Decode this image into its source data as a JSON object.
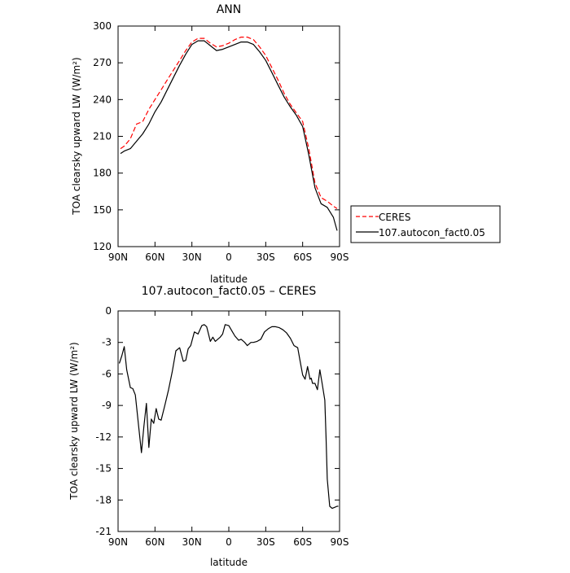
{
  "chart_data": [
    {
      "type": "line",
      "title": "ANN",
      "xlabel": "latitude",
      "ylabel": "TOA clearsky upward LW (W/m²)",
      "x_ticks": [
        "90N",
        "60N",
        "30N",
        "0",
        "30S",
        "60S",
        "90S"
      ],
      "x_tick_values": [
        90,
        60,
        30,
        0,
        -30,
        -60,
        -90
      ],
      "y_ticks": [
        "120",
        "150",
        "180",
        "210",
        "240",
        "270",
        "300"
      ],
      "ylim": [
        120,
        300
      ],
      "xlim": [
        90,
        -90
      ],
      "grid": false,
      "legend": "outside right",
      "series": [
        {
          "name": "CERES",
          "style": "dashed",
          "color": "#ff0000",
          "x": [
            88,
            85,
            80,
            75,
            70,
            65,
            60,
            55,
            50,
            45,
            40,
            35,
            30,
            25,
            20,
            15,
            10,
            5,
            0,
            -5,
            -10,
            -15,
            -20,
            -25,
            -30,
            -35,
            -40,
            -45,
            -50,
            -55,
            -60,
            -65,
            -70,
            -75,
            -80,
            -85,
            -88
          ],
          "values": [
            200,
            202,
            208,
            220,
            222,
            232,
            240,
            248,
            256,
            264,
            272,
            280,
            287,
            290,
            290,
            286,
            283,
            284,
            286,
            289,
            291,
            291,
            289,
            283,
            276,
            266,
            256,
            245,
            236,
            229,
            222,
            200,
            172,
            160,
            157,
            153,
            151
          ]
        },
        {
          "name": "107.autocon_fact0.05",
          "style": "solid",
          "color": "#000000",
          "x": [
            88,
            85,
            80,
            75,
            70,
            65,
            60,
            55,
            50,
            45,
            40,
            35,
            30,
            25,
            20,
            15,
            10,
            5,
            0,
            -5,
            -10,
            -15,
            -20,
            -25,
            -30,
            -35,
            -40,
            -45,
            -50,
            -55,
            -60,
            -65,
            -70,
            -75,
            -80,
            -85,
            -88
          ],
          "values": [
            196,
            198,
            200,
            206,
            212,
            220,
            230,
            238,
            248,
            258,
            268,
            277,
            285,
            288,
            288,
            284,
            280,
            281,
            283,
            285,
            287,
            287,
            285,
            279,
            272,
            262,
            252,
            242,
            234,
            227,
            218,
            195,
            168,
            155,
            152,
            144,
            133
          ]
        }
      ]
    },
    {
      "type": "line",
      "title": "107.autocon_fact0.05 – CERES",
      "xlabel": "latitude",
      "ylabel": "TOA clearsky upward LW (W/m²)",
      "x_ticks": [
        "90N",
        "60N",
        "30N",
        "0",
        "30S",
        "60S",
        "90S"
      ],
      "x_tick_values": [
        90,
        60,
        30,
        0,
        -30,
        -60,
        -90
      ],
      "y_ticks": [
        "-21",
        "-18",
        "-15",
        "-12",
        "-9",
        "-6",
        "-3",
        "0"
      ],
      "ylim": [
        -21,
        0
      ],
      "xlim": [
        90,
        -90
      ],
      "grid": false,
      "series": [
        {
          "name": "",
          "style": "solid",
          "color": "#000000",
          "x": [
            89,
            87,
            85,
            83,
            80,
            78,
            76,
            73,
            71,
            69,
            67,
            65,
            63,
            61,
            59,
            57,
            55,
            52,
            49,
            46,
            43,
            40,
            37,
            35,
            33,
            31,
            28,
            25,
            22,
            20,
            18,
            15,
            13,
            11,
            9,
            7,
            5,
            3,
            0,
            -3,
            -5,
            -8,
            -10,
            -13,
            -15,
            -18,
            -20,
            -23,
            -26,
            -29,
            -32,
            -35,
            -38,
            -41,
            -44,
            -47,
            -50,
            -53,
            -56,
            -58,
            -60,
            -62,
            -64,
            -66,
            -67,
            -68,
            -70,
            -72,
            -74,
            -76,
            -78,
            -79,
            -80,
            -82,
            -84,
            -86,
            -88,
            -89
          ],
          "values": [
            -5.0,
            -4.3,
            -3.4,
            -5.6,
            -7.3,
            -7.4,
            -8.0,
            -11.3,
            -13.5,
            -11.0,
            -8.8,
            -13.0,
            -10.3,
            -10.7,
            -9.3,
            -10.3,
            -10.4,
            -9.0,
            -7.5,
            -5.8,
            -3.8,
            -3.5,
            -4.8,
            -4.7,
            -3.6,
            -3.3,
            -2.0,
            -2.2,
            -1.4,
            -1.3,
            -1.5,
            -2.9,
            -2.5,
            -2.9,
            -2.7,
            -2.5,
            -2.2,
            -1.3,
            -1.4,
            -2.0,
            -2.4,
            -2.8,
            -2.7,
            -3.0,
            -3.3,
            -3.0,
            -3.0,
            -2.9,
            -2.7,
            -2.0,
            -1.7,
            -1.5,
            -1.5,
            -1.6,
            -1.8,
            -2.1,
            -2.6,
            -3.3,
            -3.5,
            -4.8,
            -6.1,
            -6.5,
            -5.3,
            -6.5,
            -6.4,
            -6.9,
            -6.9,
            -7.5,
            -5.6,
            -7.0,
            -8.5,
            -12.0,
            -16.0,
            -18.6,
            -18.8,
            -18.7,
            -18.6,
            -18.6
          ]
        }
      ]
    }
  ]
}
